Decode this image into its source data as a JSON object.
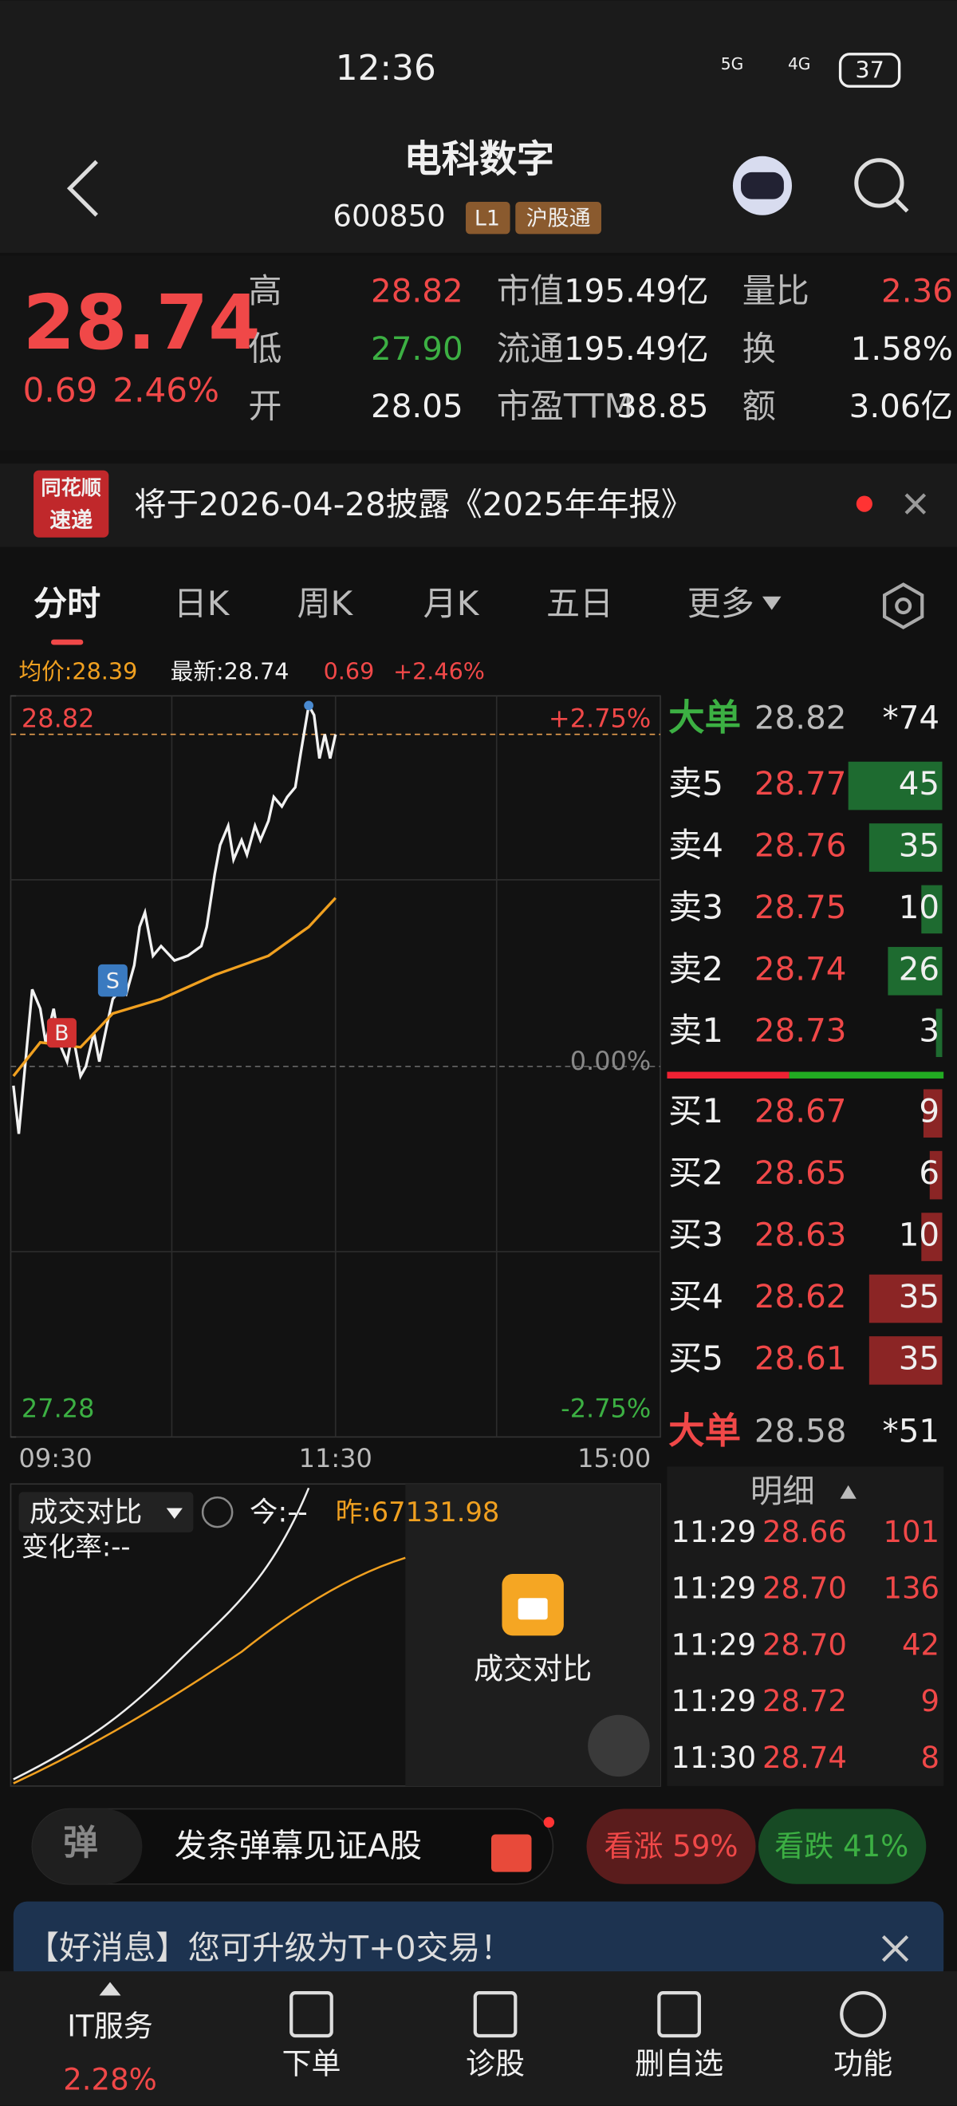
{
  "status_bar": {
    "time": "12:36",
    "network1": "5G",
    "network2": "4G",
    "battery": "37"
  },
  "header": {
    "title": "电科数字",
    "code": "600850",
    "level": "L1",
    "tag": "沪股通"
  },
  "quote": {
    "price": "28.74",
    "change": "0.69",
    "change_pct": "2.46%",
    "stats": [
      {
        "label": "高",
        "value": "28.82"
      },
      {
        "label": "低",
        "value": "27.90"
      },
      {
        "label": "开",
        "value": "28.05"
      },
      {
        "label": "市值",
        "value": "195.49亿"
      },
      {
        "label": "流通",
        "value": "195.49亿"
      },
      {
        "label": "市盈TTM",
        "value": "38.85"
      },
      {
        "label": "量比",
        "value": "2.36"
      },
      {
        "label": "换",
        "value": "1.58%"
      },
      {
        "label": "额",
        "value": "3.06亿"
      }
    ]
  },
  "notice": {
    "badge_top": "同花顺",
    "badge_bottom": "速递",
    "text": "将于2026-04-28披露《2025年年报》"
  },
  "tabs": [
    "分时",
    "日K",
    "周K",
    "月K",
    "五日",
    "更多"
  ],
  "chart_info": {
    "avg": "均价:28.39",
    "latest": "最新:28.74",
    "change": "0.69",
    "pct": "+2.46%"
  },
  "chart": {
    "type": "line",
    "ylim": [
      27.28,
      28.82
    ],
    "yticks": [
      28.82,
      27.28
    ],
    "pct_ticks": [
      {
        "value": 28.82,
        "label": "+2.75%"
      },
      {
        "value": 28.05,
        "label": "0.00%"
      },
      {
        "value": 27.28,
        "label": "-2.75%"
      }
    ],
    "xlim": [
      0,
      240
    ],
    "xticks": [
      {
        "value": 0,
        "label": "09:30"
      },
      {
        "value": 120,
        "label": "11:30"
      },
      {
        "value": 240,
        "label": "15:00"
      }
    ],
    "latest": 28.74,
    "series": [
      {
        "name": "price",
        "color": "#f2f2f2",
        "x": [
          0,
          2,
          5,
          7,
          10,
          12,
          15,
          17,
          20,
          22,
          25,
          27,
          30,
          32,
          35,
          37,
          40,
          42,
          45,
          47,
          49,
          52,
          55,
          60,
          65,
          70,
          72,
          75,
          77,
          80,
          82,
          85,
          87,
          90,
          92,
          95,
          97,
          100,
          102,
          105,
          107,
          110,
          112,
          114,
          116,
          118,
          120
        ],
        "values": [
          28.01,
          27.91,
          28.09,
          28.21,
          28.17,
          28.1,
          28.17,
          28.1,
          28.06,
          28.12,
          28.03,
          28.05,
          28.12,
          28.06,
          28.14,
          28.19,
          28.21,
          28.2,
          28.26,
          28.34,
          28.37,
          28.28,
          28.3,
          28.27,
          28.28,
          28.3,
          28.34,
          28.45,
          28.51,
          28.55,
          28.48,
          28.52,
          28.49,
          28.55,
          28.52,
          28.56,
          28.61,
          28.59,
          28.61,
          28.63,
          28.7,
          28.8,
          28.78,
          28.69,
          28.74,
          28.69,
          28.74
        ]
      },
      {
        "name": "avg",
        "color": "#f0a020",
        "x": [
          0,
          10,
          25,
          37,
          55,
          75,
          95,
          110,
          120
        ],
        "values": [
          28.03,
          28.1,
          28.09,
          28.16,
          28.19,
          28.24,
          28.28,
          28.34,
          28.4
        ]
      }
    ],
    "markers": [
      "B",
      "S"
    ]
  },
  "order_book": {
    "big_top": {
      "label": "大单",
      "price": "28.82",
      "volume": "*74"
    },
    "sells": [
      {
        "label": "卖5",
        "price": "28.77",
        "volume": 45
      },
      {
        "label": "卖4",
        "price": "28.76",
        "volume": 35
      },
      {
        "label": "卖3",
        "price": "28.75",
        "volume": 10
      },
      {
        "label": "卖2",
        "price": "28.74",
        "volume": 26
      },
      {
        "label": "卖1",
        "price": "28.73",
        "volume": 3
      }
    ],
    "buys": [
      {
        "label": "买1",
        "price": "28.67",
        "volume": 9
      },
      {
        "label": "买2",
        "price": "28.65",
        "volume": 6
      },
      {
        "label": "买3",
        "price": "28.63",
        "volume": 10
      },
      {
        "label": "买4",
        "price": "28.62",
        "volume": 35
      },
      {
        "label": "买5",
        "price": "28.61",
        "volume": 35
      }
    ],
    "big_bottom": {
      "label": "大单",
      "price": "28.58",
      "volume": "*51"
    }
  },
  "volume_panel": {
    "title": "成交对比",
    "today": "今:--",
    "yesterday": "昨:67131.98",
    "rate": "变化率:--",
    "locked": "成交对比"
  },
  "detail": {
    "title": "明细",
    "rows": [
      [
        "11:29",
        "28.66",
        "101"
      ],
      [
        "11:29",
        "28.70",
        "136"
      ],
      [
        "11:29",
        "28.70",
        "42"
      ],
      [
        "11:29",
        "28.72",
        "9"
      ],
      [
        "11:30",
        "28.74",
        "8"
      ]
    ]
  },
  "bottom": {
    "danmu_icon": "弹",
    "danmu": "发条弹幕见证A股",
    "up": "看涨 59%",
    "down": "看跌 41%"
  },
  "banner": {
    "text": "【好消息】您可升级为T+0交易！"
  },
  "nav": {
    "first": "IT服务",
    "first_pct": "2.28%",
    "items": [
      "下单",
      "诊股",
      "删自选",
      "功能"
    ]
  }
}
